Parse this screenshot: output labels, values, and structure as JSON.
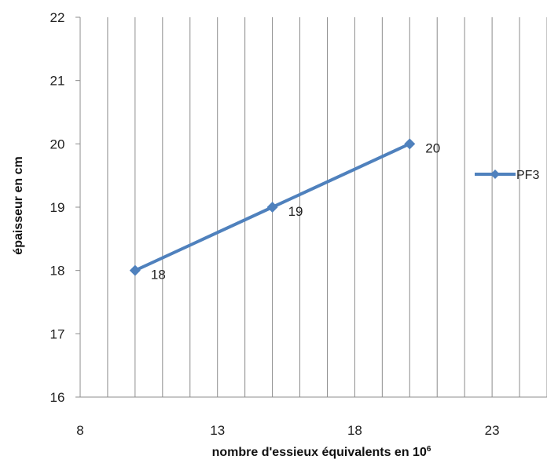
{
  "chart_data": {
    "type": "line",
    "title": "",
    "xlabel": "nombre d'essieux équivalents en 10",
    "xlabel_superscript": "6",
    "ylabel": "épaisseur en cm",
    "xlim": [
      8,
      25
    ],
    "ylim": [
      16,
      22
    ],
    "xticks": [
      8,
      13,
      18,
      23
    ],
    "yticks": [
      16,
      17,
      18,
      19,
      20,
      21,
      22
    ],
    "vertical_gridlines": true,
    "gridline_step_x": 1,
    "legend_position": "right",
    "series": [
      {
        "name": "PF3",
        "color": "#4f81bd",
        "marker": "diamond",
        "points": [
          {
            "x": 10,
            "y": 18,
            "label": "18"
          },
          {
            "x": 15,
            "y": 19,
            "label": "19"
          },
          {
            "x": 20,
            "y": 20,
            "label": "20"
          }
        ]
      }
    ]
  }
}
